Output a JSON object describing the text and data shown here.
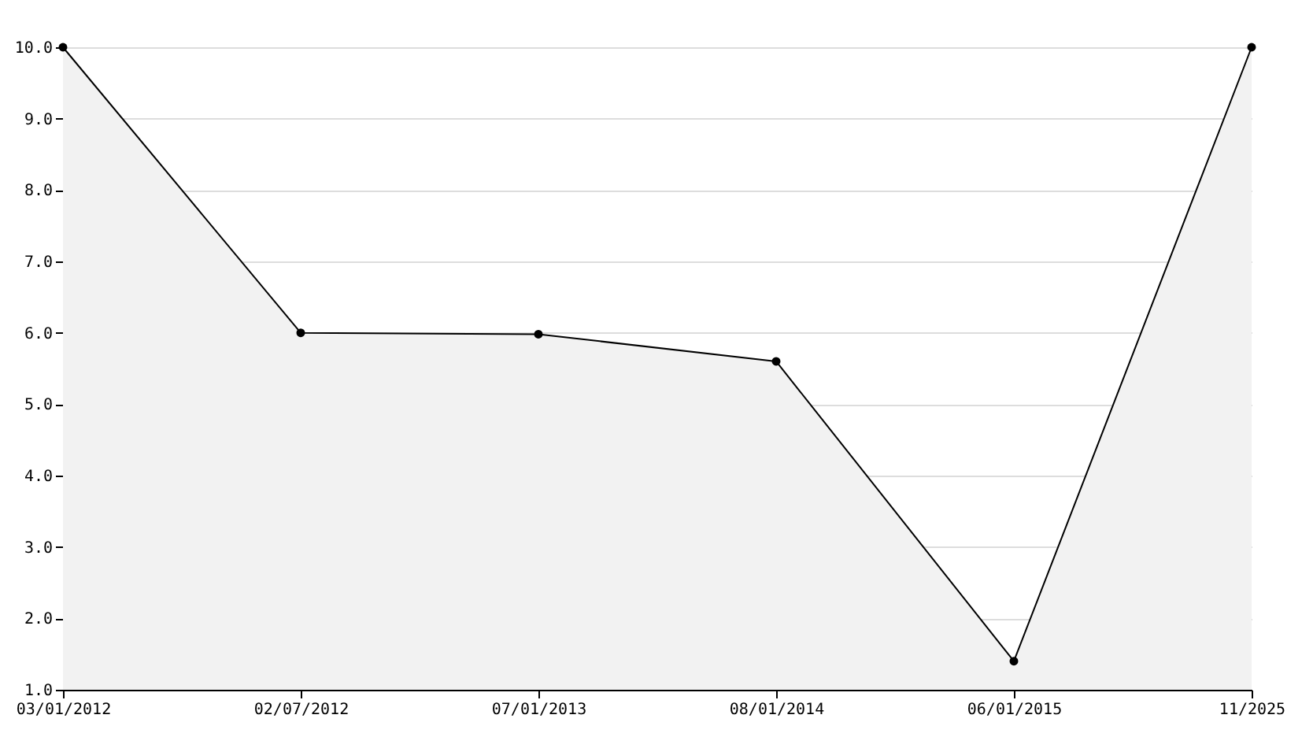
{
  "chart_data": {
    "type": "area",
    "categories": [
      "03/01/2012",
      "02/07/2012",
      "07/01/2013",
      "08/01/2014",
      "06/01/2015",
      "11/2025"
    ],
    "series": [
      {
        "color": "#f2f2f2",
        "values": [
          10,
          6.0,
          5.98,
          5.6,
          1.4,
          10
        ]
      }
    ],
    "ylim": [
      1,
      10
    ],
    "yticks": [
      {
        "value": 1,
        "label": "1.0"
      },
      {
        "value": 2,
        "label": "2.0"
      },
      {
        "value": 3,
        "label": "3.0"
      },
      {
        "value": 4,
        "label": "4.0"
      },
      {
        "value": 5,
        "label": "5.0"
      },
      {
        "value": 6,
        "label": "6.0"
      },
      {
        "value": 7,
        "label": "7.0"
      },
      {
        "value": 8,
        "label": "8.0"
      },
      {
        "value": 9,
        "label": "9.0"
      },
      {
        "value": 10,
        "label": "10.0"
      }
    ],
    "grid": "y",
    "marker": "circle",
    "line_style": "solid"
  }
}
